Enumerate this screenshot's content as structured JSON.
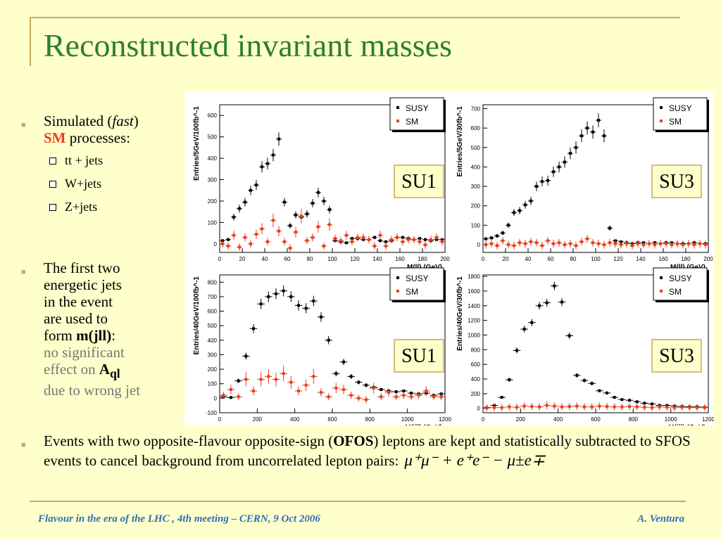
{
  "slide": {
    "title": "Reconstructed invariant masses",
    "bullet1": {
      "line1_prefix": "Simulated (",
      "fast": "fast",
      "line1_suffix": ")",
      "sm": "SM",
      "processes": " processes:"
    },
    "subitems": [
      "tt + jets",
      "W+jets",
      "Z+jets"
    ],
    "bullet2": {
      "lines": [
        "The first two",
        "energetic jets",
        "in the event",
        "are used to"
      ],
      "form": "form ",
      "mjll": "m(jll)",
      "colon": ":",
      "gray1": "no significant",
      "gray2": "effect on ",
      "aql_a": "A",
      "aql_sub": "ql",
      "gray3": "due to wrong jet"
    },
    "bullet3": {
      "pre": "Events with two opposite-flavour opposite-sign (",
      "ofos": "OFOS",
      "post": ") leptons are kept and statistically subtracted to SFOS events to cancel background from uncorrelated lepton pairs:",
      "formula": "μ⁺μ⁻ + e⁺e⁻ − μ±e∓"
    },
    "footer": {
      "left": "Flavour in the era of the LHC , 4th meeting  –  CERN, 9 Oct 2006",
      "right": "A. Ventura"
    }
  },
  "colors": {
    "title": "#2e7d32",
    "accent": "#c8a95a",
    "sm_red": "#e8401c",
    "footer": "#2e6fb7",
    "susy_marker": "#000000"
  },
  "chart_data": [
    {
      "type": "scatter",
      "tag": "SU1",
      "xlabel": "M(ll)  (GeV)",
      "ylabel": "Entries/5GeV/100fb^-1",
      "xlim": [
        0,
        200
      ],
      "ylim": [
        -40,
        650
      ],
      "xticks": [
        0,
        20,
        40,
        60,
        80,
        100,
        120,
        140,
        160,
        180,
        200
      ],
      "yticks": [
        0,
        100,
        200,
        300,
        400,
        500,
        600
      ],
      "legend": [
        "SUSY",
        "SM"
      ],
      "series": [
        {
          "name": "SUSY",
          "x": [
            2.5,
            7.5,
            12.5,
            17.5,
            22.5,
            27.5,
            32.5,
            37.5,
            42.5,
            47.5,
            52.5,
            57.5,
            62.5,
            67.5,
            72.5,
            77.5,
            82.5,
            87.5,
            92.5,
            97.5,
            102.5,
            107.5,
            112.5,
            117.5,
            122.5,
            127.5,
            132.5,
            137.5,
            142.5,
            147.5,
            152.5,
            157.5,
            162.5,
            167.5,
            172.5,
            177.5,
            182.5,
            187.5,
            192.5,
            197.5
          ],
          "y": [
            15,
            20,
            125,
            165,
            195,
            250,
            275,
            360,
            375,
            415,
            490,
            195,
            85,
            135,
            125,
            140,
            190,
            240,
            200,
            160,
            15,
            10,
            5,
            25,
            25,
            20,
            20,
            30,
            15,
            10,
            15,
            30,
            30,
            25,
            20,
            25,
            20,
            15,
            20,
            20
          ]
        },
        {
          "name": "SM",
          "x": [
            2.5,
            7.5,
            12.5,
            17.5,
            22.5,
            27.5,
            32.5,
            37.5,
            42.5,
            47.5,
            52.5,
            57.5,
            62.5,
            67.5,
            72.5,
            77.5,
            82.5,
            87.5,
            92.5,
            97.5,
            102.5,
            107.5,
            112.5,
            117.5,
            122.5,
            127.5,
            132.5,
            137.5,
            142.5,
            147.5,
            152.5,
            157.5,
            162.5,
            167.5,
            172.5,
            177.5,
            182.5,
            187.5,
            192.5,
            197.5
          ],
          "y": [
            0,
            -10,
            40,
            -15,
            30,
            0,
            45,
            70,
            10,
            110,
            60,
            10,
            -20,
            55,
            130,
            15,
            30,
            80,
            -10,
            90,
            25,
            15,
            40,
            10,
            30,
            30,
            20,
            -10,
            40,
            -10,
            20,
            30,
            10,
            20,
            20,
            10,
            -5,
            20,
            30,
            10
          ]
        }
      ]
    },
    {
      "type": "scatter",
      "tag": "SU3",
      "xlabel": "M(ll)  (GeV)",
      "ylabel": "Entries/5GeV/30fb^-1",
      "xlim": [
        0,
        200
      ],
      "ylim": [
        -40,
        720
      ],
      "xticks": [
        0,
        20,
        40,
        60,
        80,
        100,
        120,
        140,
        160,
        180,
        200
      ],
      "yticks": [
        0,
        100,
        200,
        300,
        400,
        500,
        600,
        700
      ],
      "legend": [
        "SUSY",
        "SM"
      ],
      "series": [
        {
          "name": "SUSY",
          "x": [
            2.5,
            7.5,
            12.5,
            17.5,
            22.5,
            27.5,
            32.5,
            37.5,
            42.5,
            47.5,
            52.5,
            57.5,
            62.5,
            67.5,
            72.5,
            77.5,
            82.5,
            87.5,
            92.5,
            97.5,
            102.5,
            107.5,
            112.5,
            117.5,
            122.5,
            127.5,
            132.5,
            137.5,
            142.5,
            147.5,
            152.5,
            157.5,
            162.5,
            167.5,
            172.5,
            177.5,
            182.5,
            187.5,
            192.5,
            197.5
          ],
          "y": [
            30,
            35,
            45,
            60,
            100,
            165,
            175,
            205,
            225,
            300,
            325,
            330,
            375,
            400,
            425,
            470,
            500,
            560,
            600,
            580,
            640,
            560,
            85,
            20,
            15,
            10,
            5,
            10,
            10,
            5,
            10,
            5,
            10,
            10,
            5,
            5,
            5,
            10,
            5,
            5
          ]
        },
        {
          "name": "SM",
          "x": [
            2.5,
            7.5,
            12.5,
            17.5,
            22.5,
            27.5,
            32.5,
            37.5,
            42.5,
            47.5,
            52.5,
            57.5,
            62.5,
            67.5,
            72.5,
            77.5,
            82.5,
            87.5,
            92.5,
            97.5,
            102.5,
            107.5,
            112.5,
            117.5,
            122.5,
            127.5,
            132.5,
            137.5,
            142.5,
            147.5,
            152.5,
            157.5,
            162.5,
            167.5,
            172.5,
            177.5,
            182.5,
            187.5,
            192.5,
            197.5
          ],
          "y": [
            0,
            5,
            -5,
            20,
            0,
            -5,
            10,
            5,
            15,
            10,
            -5,
            20,
            5,
            10,
            0,
            5,
            -5,
            15,
            30,
            10,
            5,
            0,
            10,
            5,
            0,
            5,
            -5,
            5,
            0,
            5,
            0,
            5,
            5,
            0,
            5,
            0,
            5,
            0,
            5,
            0
          ]
        }
      ]
    },
    {
      "type": "scatter",
      "tag": "SU1",
      "xlabel": "M(jll)  (GeV)",
      "ylabel": "Entries/40GeV/100fb^-1",
      "xlim": [
        0,
        1200
      ],
      "ylim": [
        -100,
        850
      ],
      "xticks": [
        0,
        200,
        400,
        600,
        800,
        1000,
        1200
      ],
      "yticks": [
        -100,
        0,
        100,
        200,
        300,
        400,
        500,
        600,
        700,
        800
      ],
      "legend": [
        "SUSY",
        "SM"
      ],
      "series": [
        {
          "name": "SUSY",
          "x": [
            20,
            60,
            100,
            140,
            180,
            220,
            260,
            300,
            340,
            380,
            420,
            460,
            500,
            540,
            580,
            620,
            660,
            700,
            740,
            780,
            820,
            860,
            900,
            940,
            980,
            1020,
            1060,
            1100,
            1140,
            1180
          ],
          "y": [
            10,
            5,
            120,
            290,
            480,
            650,
            700,
            720,
            740,
            700,
            640,
            620,
            670,
            560,
            400,
            170,
            250,
            150,
            110,
            90,
            75,
            60,
            50,
            45,
            50,
            35,
            30,
            35,
            20,
            30
          ]
        },
        {
          "name": "SM",
          "x": [
            20,
            60,
            100,
            140,
            180,
            220,
            260,
            300,
            340,
            380,
            420,
            460,
            500,
            540,
            580,
            620,
            660,
            700,
            740,
            780,
            820,
            860,
            900,
            940,
            980,
            1020,
            1060,
            1100,
            1140,
            1180
          ],
          "y": [
            20,
            60,
            10,
            130,
            50,
            130,
            150,
            130,
            170,
            110,
            50,
            90,
            150,
            40,
            10,
            70,
            60,
            20,
            0,
            -10,
            70,
            10,
            40,
            10,
            20,
            10,
            20,
            50,
            10,
            10
          ]
        }
      ]
    },
    {
      "type": "scatter",
      "tag": "SU3",
      "xlabel": "M(jll)  (GeV)",
      "ylabel": "Entries/40GeV/30fb^-1",
      "xlim": [
        0,
        1200
      ],
      "ylim": [
        -60,
        1820
      ],
      "xticks": [
        0,
        200,
        400,
        600,
        800,
        1000,
        1200
      ],
      "yticks": [
        0,
        200,
        400,
        600,
        800,
        1000,
        1200,
        1400,
        1600,
        1800
      ],
      "legend": [
        "SUSY",
        "SM"
      ],
      "series": [
        {
          "name": "SUSY",
          "x": [
            20,
            60,
            100,
            140,
            180,
            220,
            260,
            300,
            340,
            380,
            420,
            460,
            500,
            540,
            580,
            620,
            660,
            700,
            740,
            780,
            820,
            860,
            900,
            940,
            980,
            1020,
            1060,
            1100,
            1140,
            1180
          ],
          "y": [
            10,
            40,
            150,
            390,
            790,
            1080,
            1170,
            1400,
            1440,
            1670,
            1450,
            990,
            450,
            380,
            340,
            240,
            210,
            150,
            120,
            110,
            90,
            70,
            60,
            40,
            40,
            30,
            25,
            20,
            20,
            15
          ]
        },
        {
          "name": "SM",
          "x": [
            20,
            60,
            100,
            140,
            180,
            220,
            260,
            300,
            340,
            380,
            420,
            460,
            500,
            540,
            580,
            620,
            660,
            700,
            740,
            780,
            820,
            860,
            900,
            940,
            980,
            1020,
            1060,
            1100,
            1140,
            1180
          ],
          "y": [
            5,
            10,
            10,
            20,
            15,
            30,
            25,
            20,
            40,
            30,
            20,
            25,
            30,
            20,
            20,
            30,
            25,
            20,
            20,
            25,
            20,
            15,
            10,
            20,
            15,
            10,
            15,
            10,
            10,
            10
          ]
        }
      ]
    }
  ]
}
